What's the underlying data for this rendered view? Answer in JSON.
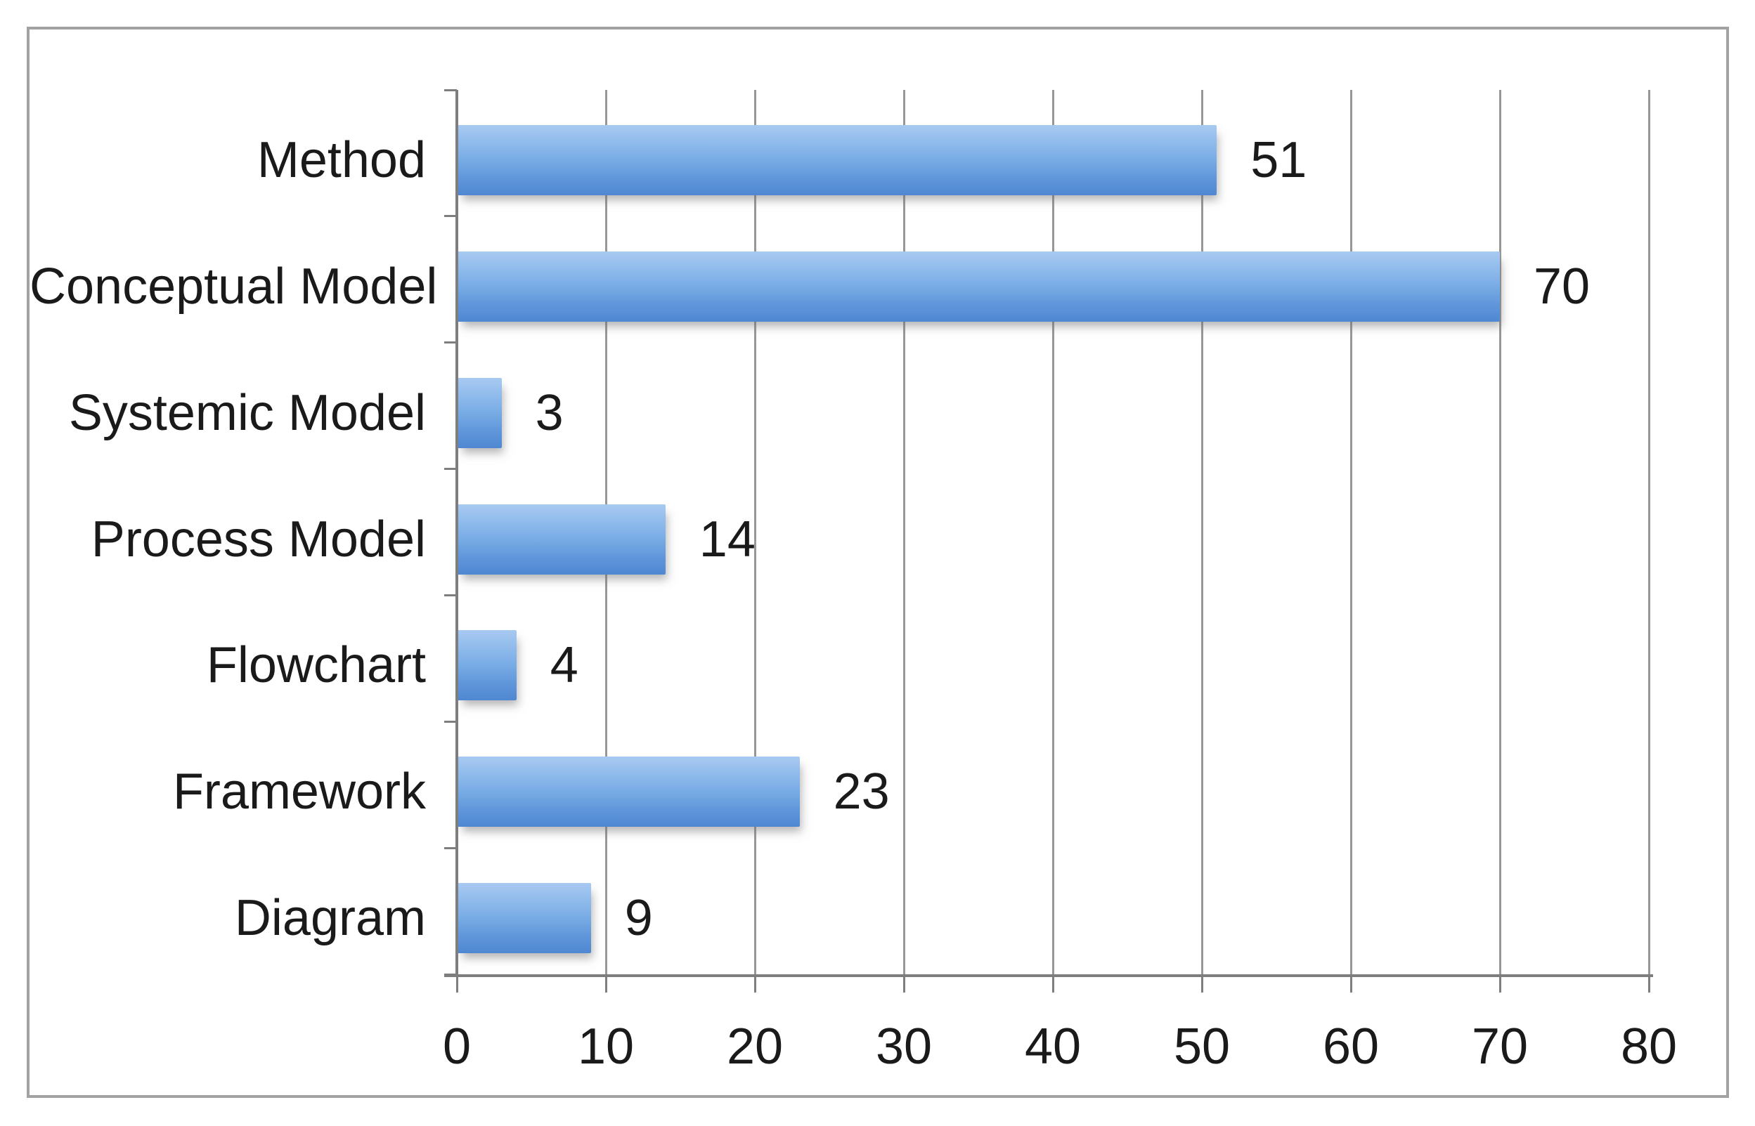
{
  "figure": {
    "background_color": "#ffffff",
    "border_color": "#a2a2a2"
  },
  "chart_data": {
    "type": "bar",
    "orientation": "horizontal",
    "categories": [
      "Method",
      "Conceptual Model",
      "Systemic Model",
      "Process Model",
      "Flowchart",
      "Framework",
      "Diagram"
    ],
    "values": [
      51,
      70,
      3,
      14,
      4,
      23,
      9
    ],
    "data_labels": [
      "51",
      "70",
      "3",
      "14",
      "4",
      "23",
      "9"
    ],
    "x_ticks": [
      0,
      10,
      20,
      30,
      40,
      50,
      60,
      70,
      80
    ],
    "x_tick_labels": [
      "0",
      "10",
      "20",
      "30",
      "40",
      "50",
      "60",
      "70",
      "80"
    ],
    "xlim": [
      0,
      80
    ],
    "grid": true,
    "legend": false,
    "bar_color": "#79ade4",
    "bar_gradient": [
      "#a8caf1",
      "#8db9eb",
      "#76aae4",
      "#5e95da",
      "#4f87d1"
    ],
    "gridline_color": "#989898",
    "axis_color": "#7e7e7e",
    "text_color": "#1a1a1a"
  }
}
